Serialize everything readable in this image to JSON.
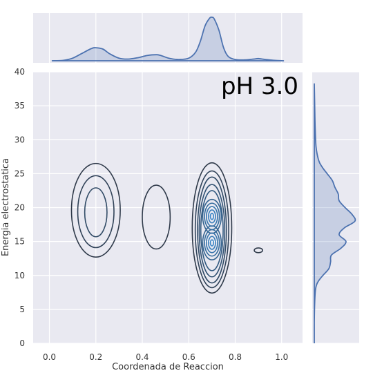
{
  "chart_data": {
    "type": "joint-kde",
    "title": "",
    "annotation": "pH 3.0",
    "xlabel": "Coordenada de Reaccion",
    "ylabel": "Energia electrostatica",
    "xlim": [
      -0.07,
      1.09
    ],
    "ylim": [
      0,
      40
    ],
    "xticks": [
      "0.0",
      "0.2",
      "0.4",
      "0.6",
      "0.8",
      "1.0"
    ],
    "yticks": [
      "0",
      "5",
      "10",
      "15",
      "20",
      "25",
      "30",
      "35",
      "40"
    ],
    "grid": true,
    "colors": {
      "background": "#e9e9f1",
      "grid": "#ffffff",
      "line": "#4c72b0",
      "contour_low": "#2f3a4a",
      "contour_high": "#3a86c8"
    },
    "marginal_x": {
      "x": [
        0.01,
        0.06,
        0.1,
        0.14,
        0.18,
        0.2,
        0.23,
        0.26,
        0.3,
        0.34,
        0.38,
        0.42,
        0.46,
        0.48,
        0.52,
        0.56,
        0.6,
        0.63,
        0.65,
        0.67,
        0.69,
        0.7,
        0.71,
        0.73,
        0.75,
        0.77,
        0.8,
        0.84,
        0.88,
        0.9,
        0.93,
        0.97,
        1.01
      ],
      "density": [
        0.0,
        0.01,
        0.06,
        0.17,
        0.28,
        0.3,
        0.27,
        0.16,
        0.06,
        0.04,
        0.07,
        0.12,
        0.14,
        0.12,
        0.05,
        0.03,
        0.06,
        0.2,
        0.45,
        0.8,
        0.98,
        1.0,
        0.96,
        0.7,
        0.3,
        0.1,
        0.03,
        0.02,
        0.04,
        0.05,
        0.03,
        0.01,
        0.0
      ]
    },
    "marginal_y": {
      "y": [
        0,
        3,
        6,
        8,
        9,
        10,
        11,
        12,
        13,
        14,
        15,
        16,
        17,
        18,
        19,
        20,
        21,
        22,
        23,
        24,
        25,
        26,
        27,
        29,
        32,
        35,
        38.3
      ],
      "density": [
        0.0,
        0.0,
        0.01,
        0.03,
        0.08,
        0.2,
        0.34,
        0.38,
        0.4,
        0.62,
        0.74,
        0.58,
        0.7,
        0.95,
        0.88,
        0.72,
        0.58,
        0.56,
        0.48,
        0.42,
        0.3,
        0.18,
        0.1,
        0.04,
        0.02,
        0.01,
        0.0
      ]
    },
    "contours": [
      {
        "cx": 0.2,
        "cy": 19.6,
        "rx": 0.105,
        "ry": 6.9,
        "level": 0
      },
      {
        "cx": 0.2,
        "cy": 19.4,
        "rx": 0.078,
        "ry": 5.3,
        "level": 1
      },
      {
        "cx": 0.2,
        "cy": 19.3,
        "rx": 0.048,
        "ry": 3.6,
        "level": 2
      },
      {
        "cx": 0.46,
        "cy": 18.6,
        "rx": 0.06,
        "ry": 4.7,
        "level": 0
      },
      {
        "cx": 0.9,
        "cy": 13.7,
        "rx": 0.018,
        "ry": 0.35,
        "level": 0
      },
      {
        "cx": 0.7,
        "cy": 17.0,
        "rx": 0.085,
        "ry": 9.6,
        "level": 0
      },
      {
        "cx": 0.7,
        "cy": 16.8,
        "rx": 0.072,
        "ry": 8.6,
        "level": 1
      },
      {
        "cx": 0.7,
        "cy": 16.7,
        "rx": 0.062,
        "ry": 7.8,
        "level": 2
      },
      {
        "cx": 0.7,
        "cy": 16.6,
        "rx": 0.055,
        "ry": 6.8,
        "level": 3
      },
      {
        "cx": 0.7,
        "cy": 16.6,
        "rx": 0.048,
        "ry": 5.9,
        "level": 4
      },
      {
        "cx": 0.7,
        "cy": 18.7,
        "rx": 0.04,
        "ry": 2.5,
        "level": 5
      },
      {
        "cx": 0.7,
        "cy": 14.8,
        "rx": 0.04,
        "ry": 2.5,
        "level": 5
      },
      {
        "cx": 0.7,
        "cy": 18.7,
        "rx": 0.032,
        "ry": 1.95,
        "level": 6
      },
      {
        "cx": 0.7,
        "cy": 14.8,
        "rx": 0.032,
        "ry": 1.95,
        "level": 6
      },
      {
        "cx": 0.7,
        "cy": 18.7,
        "rx": 0.024,
        "ry": 1.45,
        "level": 7
      },
      {
        "cx": 0.7,
        "cy": 14.8,
        "rx": 0.024,
        "ry": 1.45,
        "level": 7
      },
      {
        "cx": 0.7,
        "cy": 18.7,
        "rx": 0.015,
        "ry": 0.95,
        "level": 8
      },
      {
        "cx": 0.7,
        "cy": 14.8,
        "rx": 0.015,
        "ry": 0.95,
        "level": 8
      },
      {
        "cx": 0.7,
        "cy": 18.7,
        "rx": 0.007,
        "ry": 0.45,
        "level": 9
      },
      {
        "cx": 0.7,
        "cy": 14.8,
        "rx": 0.007,
        "ry": 0.45,
        "level": 9
      }
    ]
  }
}
